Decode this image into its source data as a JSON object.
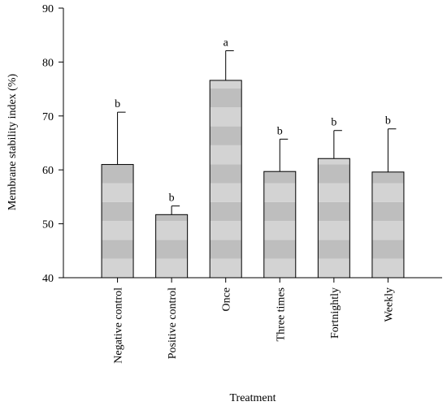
{
  "chart_data": {
    "type": "bar",
    "xlabel": "Treatment",
    "ylabel": "Membrane stability index (%)",
    "ylim": [
      40,
      90
    ],
    "yticks": [
      40,
      50,
      60,
      70,
      80,
      90
    ],
    "categories": [
      "Negative control",
      "Positive control",
      "Once",
      "Three times",
      "Fortnightly",
      "Weekly"
    ],
    "values": [
      61.0,
      51.7,
      76.6,
      59.7,
      62.1,
      59.6
    ],
    "error_upper": [
      70.7,
      53.3,
      82.1,
      65.7,
      67.3,
      67.6
    ],
    "significance": [
      "b",
      "b",
      "a",
      "b",
      "b",
      "b"
    ],
    "grid": false,
    "bar_fill": "gradient-striped gray"
  },
  "colors": {
    "band_light": "#d3d3d3",
    "band_dark": "#bebebe",
    "axis": "#000000"
  }
}
